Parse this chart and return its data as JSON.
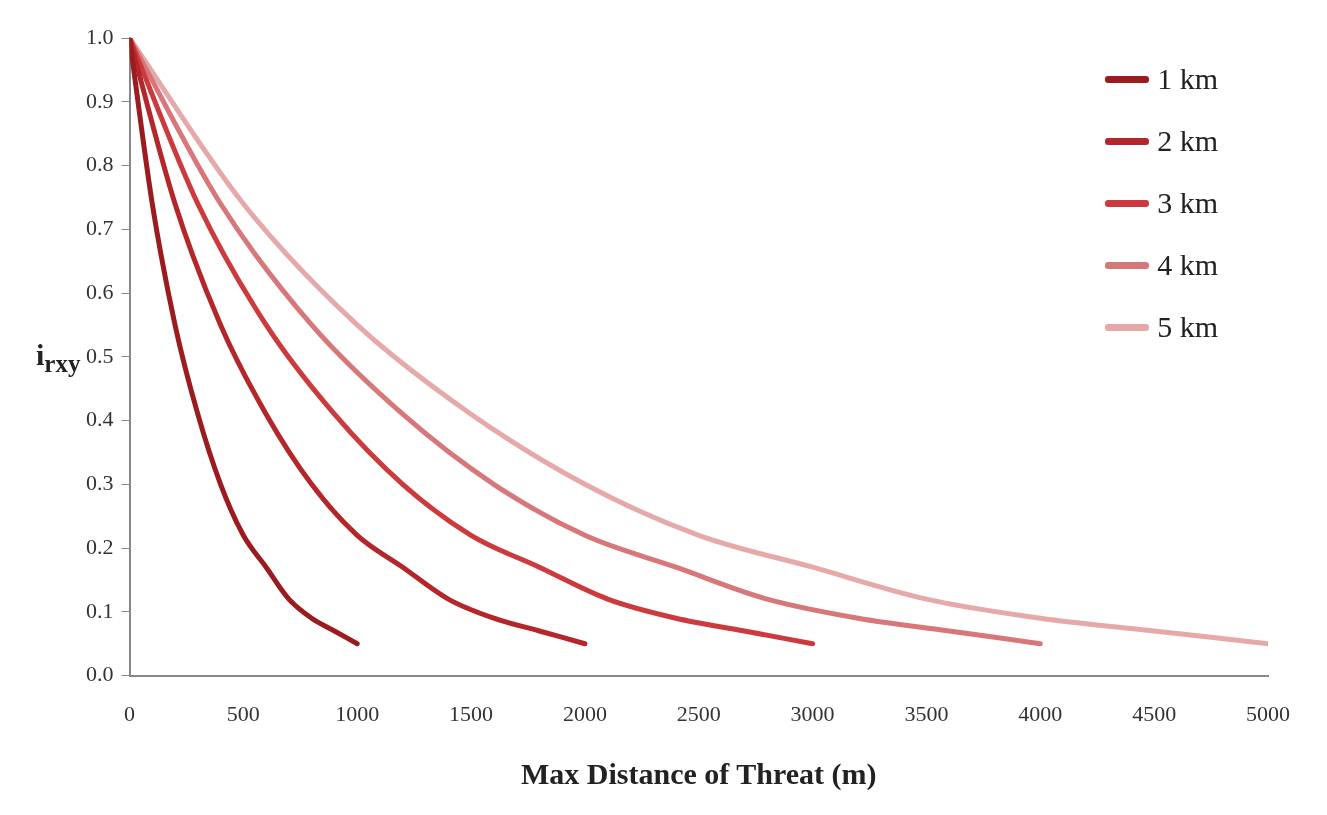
{
  "chart_data": {
    "type": "line",
    "xlabel": "Max Distance of Threat (m)",
    "ylabel": "i$_{rxy}$",
    "xlim": [
      0,
      5000
    ],
    "xticks": [
      0,
      500,
      1000,
      1500,
      2000,
      2500,
      3000,
      3500,
      4000,
      4500,
      5000
    ],
    "ylim": [
      0,
      1
    ],
    "yticks": [
      {
        "value": 0,
        "label": "0.0"
      },
      0.1,
      0.2,
      0.3,
      0.4,
      0.5,
      0.6,
      0.7,
      0.8,
      0.9,
      {
        "value": 1,
        "label": "1.0"
      }
    ],
    "grid": false,
    "legend": "top right",
    "marker": "none",
    "line_style": "solid",
    "series": [
      {
        "name": "1 km",
        "color": "#9b1b1f",
        "x": [
          0,
          100,
          200,
          300,
          400,
          500,
          600,
          700,
          800,
          900,
          1000
        ],
        "values": [
          1,
          0.74,
          0.55,
          0.41,
          0.3,
          0.22,
          0.17,
          0.12,
          0.09,
          0.07,
          0.05
        ]
      },
      {
        "name": "2 km",
        "color": "#b5262b",
        "x": [
          0,
          200,
          400,
          600,
          800,
          1000,
          1200,
          1400,
          1600,
          1800,
          2000
        ],
        "values": [
          1,
          0.74,
          0.55,
          0.41,
          0.3,
          0.22,
          0.17,
          0.12,
          0.09,
          0.07,
          0.05
        ]
      },
      {
        "name": "3 km",
        "color": "#cc3a3e",
        "x": [
          0,
          300,
          600,
          900,
          1200,
          1500,
          1800,
          2100,
          2400,
          2700,
          3000
        ],
        "values": [
          1,
          0.74,
          0.55,
          0.41,
          0.3,
          0.22,
          0.17,
          0.12,
          0.09,
          0.07,
          0.05
        ]
      },
      {
        "name": "4 km",
        "color": "#d8777a",
        "x": [
          0,
          400,
          800,
          1200,
          1600,
          2000,
          2400,
          2800,
          3200,
          3600,
          4000
        ],
        "values": [
          1,
          0.74,
          0.55,
          0.41,
          0.3,
          0.22,
          0.17,
          0.12,
          0.09,
          0.07,
          0.05
        ]
      },
      {
        "name": "5 km",
        "color": "#e6a9aa",
        "x": [
          0,
          500,
          1000,
          1500,
          2000,
          2500,
          3000,
          3500,
          4000,
          4500,
          5000
        ],
        "values": [
          1,
          0.74,
          0.55,
          0.41,
          0.3,
          0.22,
          0.17,
          0.12,
          0.09,
          0.07,
          0.05
        ]
      }
    ]
  }
}
